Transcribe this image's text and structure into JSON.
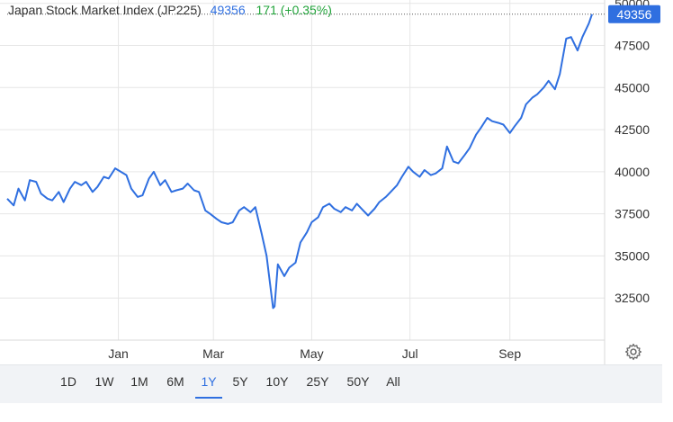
{
  "legend": {
    "title": "Japan Stock Market Index (JP225)",
    "last": "49356",
    "change": "171 (+0.35%)"
  },
  "colors": {
    "line": "#2f6fe0",
    "price_tag": "#2f6fe0",
    "change_up": "#22a43b",
    "grid": "#e6e6e6"
  },
  "last_price_label": "49356",
  "range_buttons": [
    "1D",
    "1W",
    "1M",
    "6M",
    "1Y",
    "5Y",
    "10Y",
    "25Y",
    "50Y",
    "All"
  ],
  "active_range": "1Y",
  "settings_icon": "gear-icon",
  "chart_data": {
    "type": "line",
    "title": "",
    "xlabel": "",
    "ylabel": "",
    "x_tick_labels": [
      "Jan",
      "Mar",
      "May",
      "Jul",
      "Sep"
    ],
    "y_ticks": [
      32500,
      35000,
      37500,
      40000,
      42500,
      45000,
      47500,
      50000
    ],
    "ylim": [
      30000,
      50200
    ],
    "grid": true,
    "series": [
      {
        "x": [
          "2024-10-24",
          "2024-10-28",
          "2024-10-31",
          "2024-11-04",
          "2024-11-07",
          "2024-11-11",
          "2024-11-14",
          "2024-11-18",
          "2024-11-21",
          "2024-11-25",
          "2024-11-28",
          "2024-12-02",
          "2024-12-05",
          "2024-12-09",
          "2024-12-12",
          "2024-12-16",
          "2024-12-19",
          "2024-12-23",
          "2024-12-26",
          "2024-12-30",
          "2025-01-06",
          "2025-01-09",
          "2025-01-13",
          "2025-01-16",
          "2025-01-20",
          "2025-01-23",
          "2025-01-27",
          "2025-01-30",
          "2025-02-03",
          "2025-02-06",
          "2025-02-10",
          "2025-02-13",
          "2025-02-17",
          "2025-02-20",
          "2025-02-24",
          "2025-02-27",
          "2025-03-03",
          "2025-03-06",
          "2025-03-10",
          "2025-03-13",
          "2025-03-17",
          "2025-03-20",
          "2025-03-24",
          "2025-03-27",
          "2025-03-31",
          "2025-04-03",
          "2025-04-07",
          "2025-04-08",
          "2025-04-10",
          "2025-04-14",
          "2025-04-17",
          "2025-04-21",
          "2025-04-24",
          "2025-04-28",
          "2025-05-01",
          "2025-05-05",
          "2025-05-08",
          "2025-05-12",
          "2025-05-15",
          "2025-05-19",
          "2025-05-22",
          "2025-05-26",
          "2025-05-29",
          "2025-06-02",
          "2025-06-05",
          "2025-06-09",
          "2025-06-12",
          "2025-06-16",
          "2025-06-19",
          "2025-06-23",
          "2025-06-26",
          "2025-06-30",
          "2025-07-03",
          "2025-07-07",
          "2025-07-10",
          "2025-07-14",
          "2025-07-17",
          "2025-07-21",
          "2025-07-24",
          "2025-07-28",
          "2025-07-31",
          "2025-08-04",
          "2025-08-07",
          "2025-08-11",
          "2025-08-14",
          "2025-08-18",
          "2025-08-21",
          "2025-08-25",
          "2025-08-28",
          "2025-09-01",
          "2025-09-04",
          "2025-09-08",
          "2025-09-11",
          "2025-09-15",
          "2025-09-18",
          "2025-09-22",
          "2025-09-25",
          "2025-09-29",
          "2025-10-02",
          "2025-10-06",
          "2025-10-09",
          "2025-10-13",
          "2025-10-16",
          "2025-10-20",
          "2025-10-22"
        ],
        "values": [
          38400,
          38000,
          39000,
          38300,
          39500,
          39400,
          38700,
          38400,
          38300,
          38800,
          38200,
          39000,
          39400,
          39200,
          39400,
          38800,
          39100,
          39700,
          39600,
          40200,
          39800,
          39000,
          38500,
          38600,
          39600,
          40000,
          39200,
          39500,
          38800,
          38900,
          39000,
          39300,
          38900,
          38800,
          37700,
          37500,
          37200,
          37000,
          36900,
          37000,
          37700,
          37900,
          37600,
          37900,
          36300,
          35000,
          31900,
          32000,
          34500,
          33800,
          34300,
          34600,
          35800,
          36400,
          37000,
          37300,
          37900,
          38100,
          37800,
          37600,
          37900,
          37700,
          38100,
          37700,
          37400,
          37800,
          38200,
          38500,
          38800,
          39200,
          39700,
          40300,
          40000,
          39700,
          40100,
          39800,
          39900,
          40200,
          41500,
          40600,
          40500,
          41000,
          41400,
          42200,
          42600,
          43200,
          43000,
          42900,
          42800,
          42300,
          42700,
          43200,
          44000,
          44400,
          44600,
          45000,
          45400,
          44900,
          45800,
          47900,
          48000,
          47200,
          48000,
          48800,
          49356
        ]
      }
    ]
  }
}
